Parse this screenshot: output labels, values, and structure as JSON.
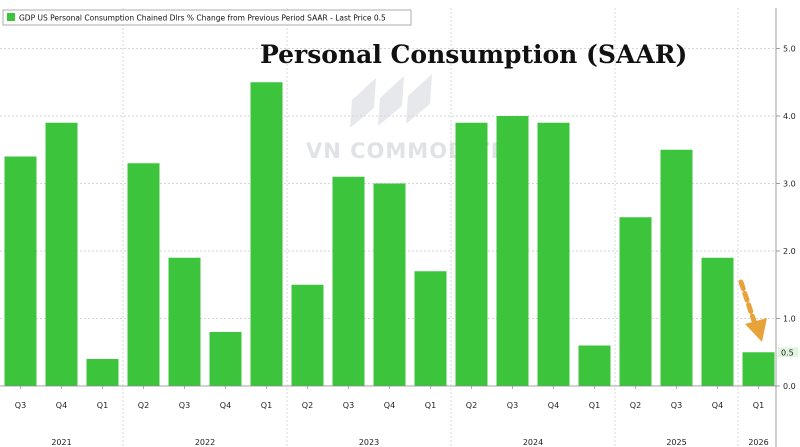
{
  "chart_data": {
    "type": "bar",
    "legend": "GDP US Personal Consumption Chained Dlrs % Change from Previous Period SAAR - Last Price 0.5",
    "title": "Personal Consumption (SAAR)",
    "watermark": "VN COMMODITIES",
    "categories": [
      "Q3",
      "Q4",
      "Q1",
      "Q2",
      "Q3",
      "Q4",
      "Q1",
      "Q2",
      "Q3",
      "Q4",
      "Q1",
      "Q2",
      "Q3",
      "Q4",
      "Q1",
      "Q2",
      "Q3",
      "Q4",
      "Q1"
    ],
    "values": [
      3.4,
      3.9,
      0.4,
      3.3,
      1.9,
      0.8,
      4.5,
      1.5,
      3.1,
      3.0,
      1.7,
      3.9,
      4.0,
      3.9,
      0.6,
      2.5,
      3.5,
      1.9,
      0.5
    ],
    "years": [
      {
        "label": "2021",
        "index": 0
      },
      {
        "label": "2022",
        "index": 3
      },
      {
        "label": "2023",
        "index": 7
      },
      {
        "label": "2024",
        "index": 11
      },
      {
        "label": "2025",
        "index": 15
      },
      {
        "label": "2026",
        "index": 18
      }
    ],
    "yticks": [
      "0.0",
      "1.0",
      "2.0",
      "3.0",
      "4.0",
      "5.0"
    ],
    "ylim": [
      0,
      5.6
    ],
    "last_value_label": "0.5",
    "bar_color": "#3cc53c",
    "arrow_color": "#e8a23a",
    "grid": true,
    "legend_position": "top-left"
  }
}
